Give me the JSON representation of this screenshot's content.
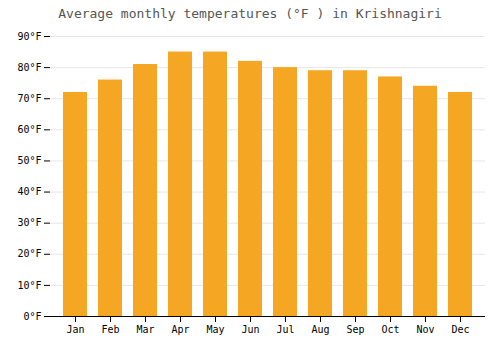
{
  "chart_data": {
    "type": "bar",
    "title": "Average monthly temperatures (°F ) in Krishnagiri",
    "categories": [
      "Jan",
      "Feb",
      "Mar",
      "Apr",
      "May",
      "Jun",
      "Jul",
      "Aug",
      "Sep",
      "Oct",
      "Nov",
      "Dec"
    ],
    "values": [
      72,
      76,
      81,
      85,
      85,
      82,
      80,
      79,
      79,
      77,
      74,
      72
    ],
    "color": "#F5A623",
    "ylim": [
      0,
      90
    ],
    "yticks": [
      {
        "value": 0,
        "label": "0°F"
      },
      {
        "value": 10,
        "label": "10°F"
      },
      {
        "value": 20,
        "label": "20°F"
      },
      {
        "value": 30,
        "label": "30°F"
      },
      {
        "value": 40,
        "label": "40°F"
      },
      {
        "value": 50,
        "label": "50°F"
      },
      {
        "value": 60,
        "label": "60°F"
      },
      {
        "value": 70,
        "label": "70°F"
      },
      {
        "value": 80,
        "label": "80°F"
      },
      {
        "value": 90,
        "label": "90°F"
      }
    ],
    "grid": true
  }
}
